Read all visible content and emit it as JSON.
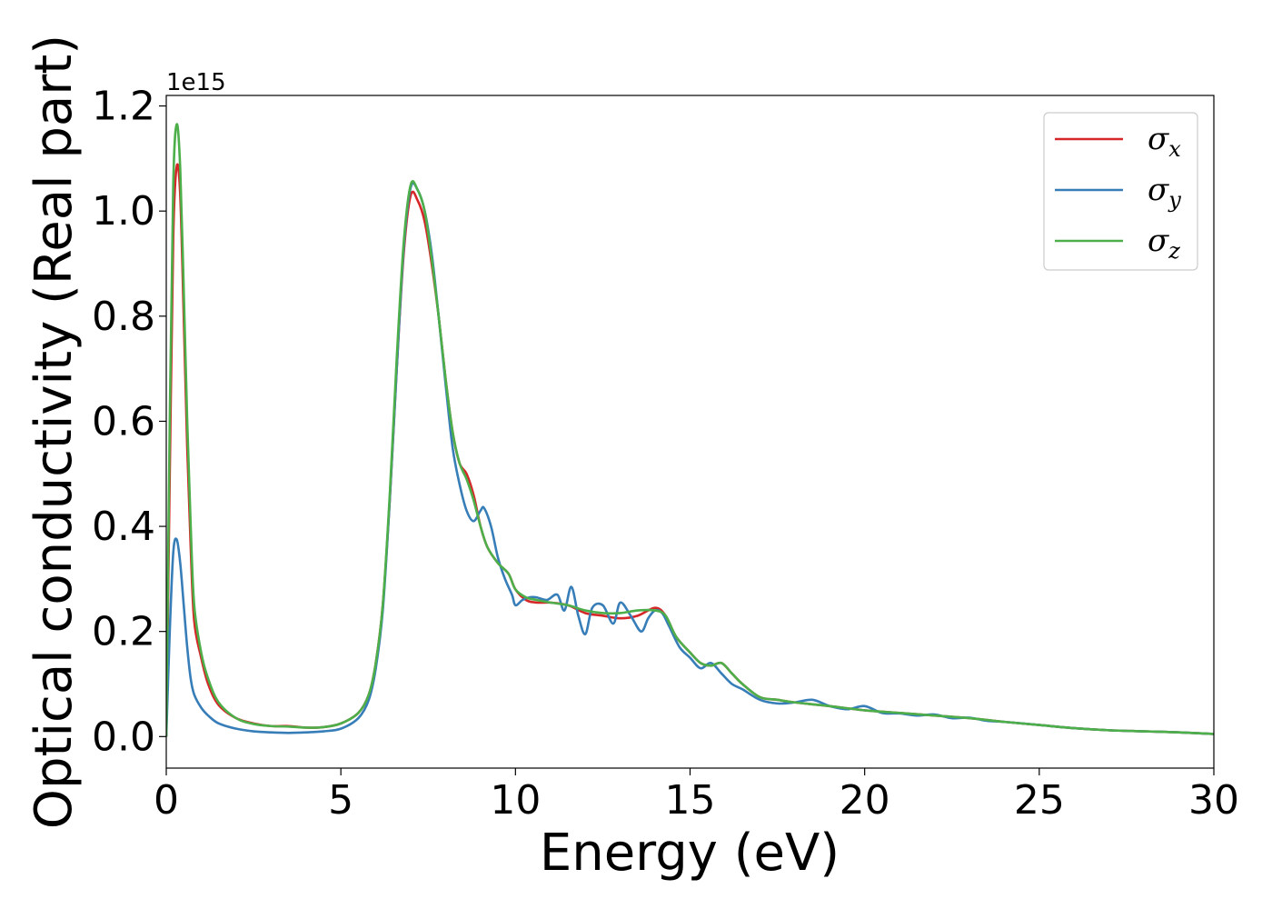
{
  "chart_data": {
    "type": "line",
    "xlabel": "Energy (eV)",
    "ylabel": "Optical conductivity (Real part)",
    "y_offset_label": "1e15",
    "xlim": [
      0,
      30
    ],
    "ylim": [
      -0.06,
      1.22
    ],
    "x_ticks": [
      0,
      5,
      10,
      15,
      20,
      25,
      30
    ],
    "x_tick_labels": [
      "0",
      "5",
      "10",
      "15",
      "20",
      "25",
      "30"
    ],
    "y_ticks": [
      0.0,
      0.2,
      0.4,
      0.6,
      0.8,
      1.0,
      1.2
    ],
    "y_tick_labels": [
      "0.0",
      "0.2",
      "0.4",
      "0.6",
      "0.8",
      "1.0",
      "1.2"
    ],
    "grid": false,
    "legend_position": "top-right",
    "series": [
      {
        "name": "σx",
        "name_base": "σ",
        "name_sub": "x",
        "color": "#d62728",
        "x": [
          0,
          0.1,
          0.2,
          0.3,
          0.4,
          0.5,
          0.6,
          0.7,
          0.8,
          1.0,
          1.2,
          1.5,
          2.0,
          2.5,
          3.0,
          3.5,
          4.0,
          4.5,
          5.0,
          5.5,
          5.8,
          6.0,
          6.2,
          6.4,
          6.6,
          6.8,
          7.0,
          7.2,
          7.4,
          7.6,
          7.8,
          8.0,
          8.2,
          8.4,
          8.6,
          8.8,
          9.0,
          9.2,
          9.5,
          9.8,
          10.0,
          10.3,
          10.6,
          11.0,
          11.5,
          12.0,
          12.5,
          13.0,
          13.5,
          14.0,
          14.3,
          14.6,
          15.0,
          15.3,
          15.6,
          15.9,
          16.2,
          16.5,
          17.0,
          17.5,
          18.0,
          19.0,
          20.0,
          21.0,
          22.0,
          23.0,
          24.0,
          25.0,
          26.0,
          27.0,
          28.0,
          29.0,
          30.0
        ],
        "values": [
          0,
          0.5,
          0.95,
          1.085,
          1.03,
          0.8,
          0.55,
          0.36,
          0.22,
          0.15,
          0.1,
          0.06,
          0.035,
          0.025,
          0.02,
          0.02,
          0.017,
          0.018,
          0.025,
          0.045,
          0.08,
          0.14,
          0.25,
          0.45,
          0.7,
          0.92,
          1.03,
          1.02,
          0.98,
          0.9,
          0.8,
          0.68,
          0.58,
          0.52,
          0.5,
          0.46,
          0.4,
          0.36,
          0.33,
          0.31,
          0.28,
          0.26,
          0.255,
          0.255,
          0.25,
          0.235,
          0.23,
          0.225,
          0.23,
          0.245,
          0.23,
          0.19,
          0.16,
          0.14,
          0.135,
          0.14,
          0.12,
          0.1,
          0.075,
          0.07,
          0.065,
          0.058,
          0.05,
          0.045,
          0.04,
          0.035,
          0.028,
          0.022,
          0.016,
          0.012,
          0.01,
          0.008,
          0.005
        ]
      },
      {
        "name": "σy",
        "name_base": "σ",
        "name_sub": "y",
        "color": "#377eb8",
        "x": [
          0,
          0.1,
          0.2,
          0.3,
          0.4,
          0.5,
          0.6,
          0.7,
          0.8,
          1.0,
          1.2,
          1.5,
          2.0,
          2.5,
          3.0,
          3.5,
          4.0,
          4.5,
          5.0,
          5.5,
          5.8,
          6.0,
          6.2,
          6.4,
          6.6,
          6.8,
          7.0,
          7.2,
          7.4,
          7.6,
          7.8,
          8.0,
          8.2,
          8.4,
          8.6,
          8.8,
          9.0,
          9.1,
          9.3,
          9.5,
          9.7,
          9.9,
          10.0,
          10.2,
          10.4,
          10.6,
          10.9,
          11.2,
          11.4,
          11.6,
          11.8,
          12.0,
          12.2,
          12.5,
          12.8,
          13.0,
          13.3,
          13.6,
          13.8,
          14.0,
          14.2,
          14.4,
          14.7,
          15.0,
          15.3,
          15.6,
          15.9,
          16.2,
          16.5,
          17.0,
          17.5,
          18.0,
          18.5,
          19.0,
          19.5,
          20.0,
          20.5,
          21.0,
          21.5,
          22.0,
          22.5,
          23.0,
          23.5,
          24.0,
          25.0,
          26.0,
          27.0,
          28.0,
          29.0,
          30.0
        ],
        "values": [
          0,
          0.2,
          0.35,
          0.375,
          0.33,
          0.25,
          0.17,
          0.11,
          0.08,
          0.055,
          0.04,
          0.025,
          0.015,
          0.01,
          0.008,
          0.007,
          0.008,
          0.01,
          0.015,
          0.035,
          0.07,
          0.13,
          0.24,
          0.45,
          0.7,
          0.93,
          1.045,
          1.04,
          1.0,
          0.92,
          0.8,
          0.67,
          0.55,
          0.48,
          0.43,
          0.41,
          0.43,
          0.435,
          0.4,
          0.34,
          0.3,
          0.27,
          0.25,
          0.26,
          0.265,
          0.265,
          0.26,
          0.27,
          0.24,
          0.285,
          0.23,
          0.195,
          0.245,
          0.25,
          0.215,
          0.255,
          0.23,
          0.2,
          0.225,
          0.24,
          0.235,
          0.21,
          0.17,
          0.15,
          0.13,
          0.14,
          0.12,
          0.1,
          0.09,
          0.07,
          0.063,
          0.065,
          0.07,
          0.058,
          0.052,
          0.058,
          0.045,
          0.044,
          0.04,
          0.042,
          0.035,
          0.036,
          0.03,
          0.028,
          0.022,
          0.016,
          0.012,
          0.01,
          0.008,
          0.005
        ]
      },
      {
        "name": "σz",
        "name_base": "σ",
        "name_sub": "z",
        "color": "#4daf4a",
        "x": [
          0,
          0.1,
          0.2,
          0.3,
          0.4,
          0.5,
          0.6,
          0.7,
          0.8,
          1.0,
          1.2,
          1.5,
          2.0,
          2.5,
          3.0,
          3.5,
          4.0,
          4.5,
          5.0,
          5.5,
          5.8,
          6.0,
          6.2,
          6.4,
          6.6,
          6.8,
          7.0,
          7.2,
          7.4,
          7.6,
          7.8,
          8.0,
          8.2,
          8.4,
          8.6,
          8.8,
          9.0,
          9.2,
          9.5,
          9.8,
          10.0,
          10.3,
          10.6,
          11.0,
          11.5,
          12.0,
          12.5,
          13.0,
          13.5,
          14.0,
          14.3,
          14.6,
          15.0,
          15.3,
          15.6,
          15.9,
          16.2,
          16.5,
          17.0,
          17.5,
          18.0,
          19.0,
          20.0,
          21.0,
          22.0,
          23.0,
          24.0,
          25.0,
          26.0,
          27.0,
          28.0,
          29.0,
          30.0
        ],
        "values": [
          0,
          0.6,
          1.05,
          1.165,
          1.08,
          0.85,
          0.6,
          0.4,
          0.25,
          0.16,
          0.11,
          0.065,
          0.035,
          0.024,
          0.02,
          0.019,
          0.017,
          0.018,
          0.025,
          0.045,
          0.08,
          0.14,
          0.25,
          0.46,
          0.72,
          0.94,
          1.05,
          1.04,
          1.0,
          0.91,
          0.8,
          0.68,
          0.58,
          0.52,
          0.49,
          0.45,
          0.4,
          0.36,
          0.33,
          0.31,
          0.28,
          0.265,
          0.26,
          0.255,
          0.25,
          0.24,
          0.235,
          0.235,
          0.24,
          0.24,
          0.23,
          0.19,
          0.16,
          0.14,
          0.135,
          0.14,
          0.12,
          0.1,
          0.075,
          0.07,
          0.065,
          0.058,
          0.05,
          0.045,
          0.04,
          0.035,
          0.028,
          0.022,
          0.016,
          0.012,
          0.01,
          0.008,
          0.005
        ]
      }
    ]
  }
}
